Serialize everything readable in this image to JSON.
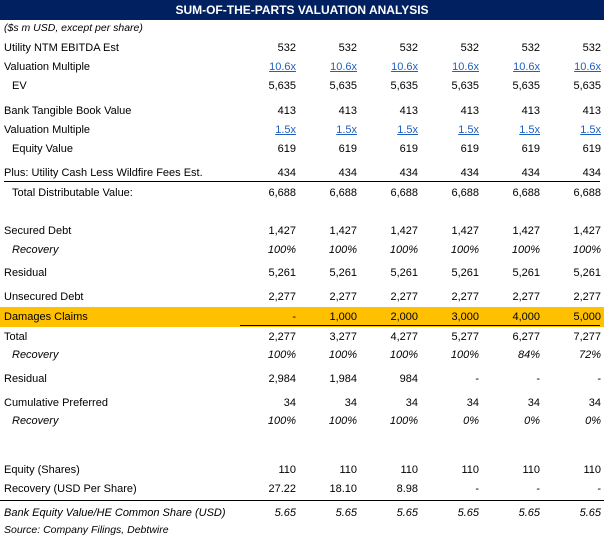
{
  "title": "SUM-OF-THE-PARTS VALUATION ANALYSIS",
  "subtitle": "($s m USD, except per share)",
  "rows": [
    {
      "label": "Utility NTM EBITDA Est",
      "values": [
        "532",
        "532",
        "532",
        "532",
        "532",
        "532"
      ]
    },
    {
      "label": "Valuation Multiple",
      "values": [
        "10.6x",
        "10.6x",
        "10.6x",
        "10.6x",
        "10.6x",
        "10.6x"
      ]
    },
    {
      "label": "EV",
      "values": [
        "5,635",
        "5,635",
        "5,635",
        "5,635",
        "5,635",
        "5,635"
      ]
    },
    {
      "label": "Bank Tangible Book Value",
      "values": [
        "413",
        "413",
        "413",
        "413",
        "413",
        "413"
      ]
    },
    {
      "label": "Valuation Multiple",
      "values": [
        "1.5x",
        "1.5x",
        "1.5x",
        "1.5x",
        "1.5x",
        "1.5x"
      ]
    },
    {
      "label": "Equity Value",
      "values": [
        "619",
        "619",
        "619",
        "619",
        "619",
        "619"
      ]
    },
    {
      "label": "Plus: Utility Cash Less Wildfire Fees Est.",
      "values": [
        "434",
        "434",
        "434",
        "434",
        "434",
        "434"
      ]
    },
    {
      "label": "Total Distributable Value:",
      "values": [
        "6,688",
        "6,688",
        "6,688",
        "6,688",
        "6,688",
        "6,688"
      ]
    },
    {
      "label": "Secured Debt",
      "values": [
        "1,427",
        "1,427",
        "1,427",
        "1,427",
        "1,427",
        "1,427"
      ]
    },
    {
      "label": "Recovery",
      "values": [
        "100%",
        "100%",
        "100%",
        "100%",
        "100%",
        "100%"
      ]
    },
    {
      "label": "Residual",
      "values": [
        "5,261",
        "5,261",
        "5,261",
        "5,261",
        "5,261",
        "5,261"
      ]
    },
    {
      "label": "Unsecured Debt",
      "values": [
        "2,277",
        "2,277",
        "2,277",
        "2,277",
        "2,277",
        "2,277"
      ]
    },
    {
      "label": "Damages Claims",
      "values": [
        "-",
        "1,000",
        "2,000",
        "3,000",
        "4,000",
        "5,000"
      ]
    },
    {
      "label": "Total",
      "values": [
        "2,277",
        "3,277",
        "4,277",
        "5,277",
        "6,277",
        "7,277"
      ]
    },
    {
      "label": "Recovery",
      "values": [
        "100%",
        "100%",
        "100%",
        "100%",
        "84%",
        "72%"
      ]
    },
    {
      "label": "Residual",
      "values": [
        "2,984",
        "1,984",
        "984",
        "-",
        "-",
        "-"
      ]
    },
    {
      "label": "Cumulative Preferred",
      "values": [
        "34",
        "34",
        "34",
        "34",
        "34",
        "34"
      ]
    },
    {
      "label": "Recovery",
      "values": [
        "100%",
        "100%",
        "100%",
        "0%",
        "0%",
        "0%"
      ]
    },
    {
      "label": "Equity (Shares)",
      "values": [
        "110",
        "110",
        "110",
        "110",
        "110",
        "110"
      ]
    },
    {
      "label": "Recovery (USD Per Share)",
      "values": [
        "27.22",
        "18.10",
        "8.98",
        "-",
        "-",
        "-"
      ]
    },
    {
      "label": "Bank Equity Value/HE Common Share (USD)",
      "values": [
        "5.65",
        "5.65",
        "5.65",
        "5.65",
        "5.65",
        "5.65"
      ]
    }
  ],
  "source": "Source: Company Filings, Debtwire",
  "colors": {
    "header_bg": "#002060",
    "highlight": "#ffc000",
    "link": "#1f5fbf"
  }
}
